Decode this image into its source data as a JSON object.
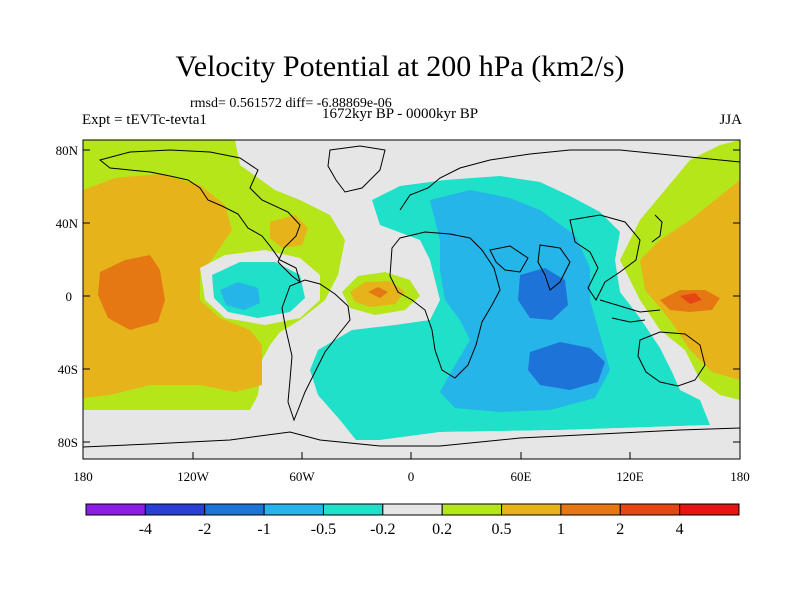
{
  "title": "Velocity Potential at 200 hPa (km2/s)",
  "stats": "rmsd= 0.561572 diff= -6.88869e-06",
  "experiment": "Expt = tEVTc-tevta1",
  "period": "1672kyr BP - 0000kyr BP",
  "season": "JJA",
  "lat_ticks": [
    "80N",
    "40N",
    "0",
    "40S",
    "80S"
  ],
  "lon_ticks": [
    "180",
    "120W",
    "60W",
    "0",
    "60E",
    "120E",
    "180"
  ],
  "colorbar": {
    "labels": [
      "-4",
      "-2",
      "-1",
      "-0.5",
      "-0.2",
      "0.2",
      "0.5",
      "1",
      "2",
      "4"
    ],
    "colors": [
      "#8a1ee6",
      "#2a3fd6",
      "#1e73d8",
      "#26b5e8",
      "#1fe0c8",
      "#e6e6e6",
      "#b4e61a",
      "#e6b41a",
      "#e67814",
      "#e64614",
      "#e61414"
    ]
  },
  "field_colors": {
    "neg_strong": "#1e73d8",
    "neg_mid": "#26b5e8",
    "neg_weak": "#1fe0c8",
    "neutral": "#e6e6e6",
    "pos_weak": "#b4e61a",
    "pos_mid": "#e6b41a",
    "pos_strong": "#e67814"
  }
}
